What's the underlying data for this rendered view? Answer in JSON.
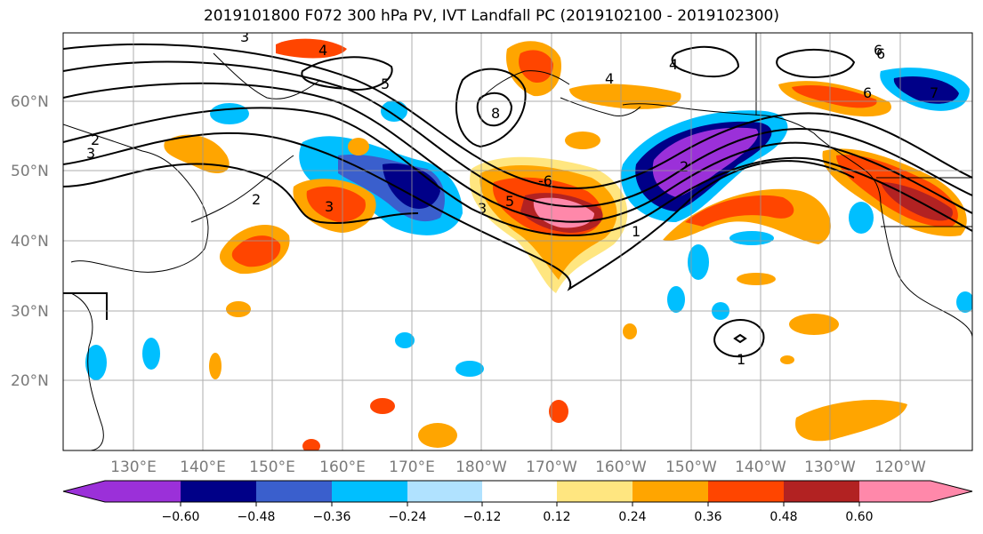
{
  "title": "2019101800 F072 300 hPa PV, IVT Landfall PC (2019102100 - 2019102300)",
  "map": {
    "lat_labels": [
      "60°N",
      "50°N",
      "40°N",
      "30°N",
      "20°N"
    ],
    "lon_labels": [
      "130°E",
      "140°E",
      "150°E",
      "160°E",
      "170°E",
      "180°W",
      "170°W",
      "160°W",
      "150°W",
      "140°W",
      "130°W",
      "120°W"
    ],
    "contour_labels": [
      "3",
      "4",
      "5",
      "6",
      "7",
      "8",
      "2",
      "3",
      "2",
      "3",
      "3",
      "5",
      "-6",
      "1",
      "2",
      "1",
      "6",
      "6",
      "4",
      "4"
    ]
  },
  "colorbar": {
    "ticks": [
      "−0.60",
      "−0.48",
      "−0.36",
      "−0.24",
      "−0.12",
      "0.12",
      "0.24",
      "0.36",
      "0.48",
      "0.60"
    ],
    "colors": [
      "#9b30d9",
      "#000088",
      "#3a5fcd",
      "#00bfff",
      "#b0e2ff",
      "#ffffff",
      "#ffe680",
      "#ffa500",
      "#ff4500",
      "#b22222",
      "#ff88aa"
    ]
  }
}
